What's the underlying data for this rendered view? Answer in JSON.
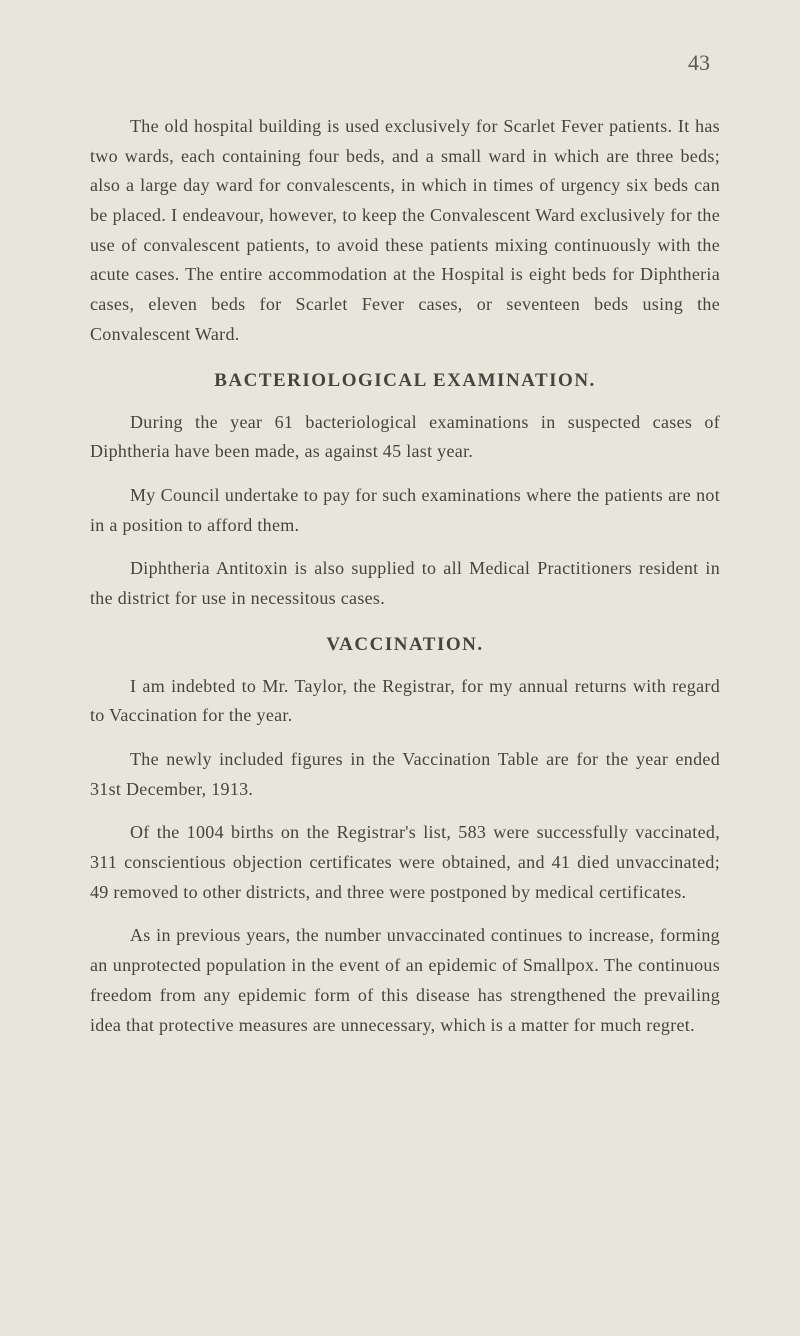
{
  "page_number": "43",
  "paragraphs": {
    "p1": "The old hospital building is used exclusively for Scarlet Fever patients. It has two wards, each containing four beds, and a small ward in which are three beds; also a large day ward for convalescents, in which in times of urgency six beds can be placed. I endeavour, however, to keep the Convalescent Ward exclusively for the use of convalescent patients, to avoid these patients mixing continuously with the acute cases. The entire accommodation at the Hospital is eight beds for Diphtheria cases, eleven beds for Scarlet Fever cases, or seventeen beds using the Convalescent Ward.",
    "heading1": "BACTERIOLOGICAL EXAMINATION.",
    "p2": "During the year 61 bacteriological examinations in suspected cases of Diphtheria have been made, as against 45 last year.",
    "p3": "My Council undertake to pay for such examinations where the patients are not in a position to afford them.",
    "p4": "Diphtheria Antitoxin is also supplied to all Medical Practitioners resident in the district for use in necessitous cases.",
    "heading2": "VACCINATION.",
    "p5": "I am indebted to Mr. Taylor, the Registrar, for my annual returns with regard to Vaccination for the year.",
    "p6": "The newly included figures in the Vaccination Table are for the year ended 31st December, 1913.",
    "p7": "Of the 1004 births on the Registrar's list, 583 were successfully vaccinated, 311 conscientious objection certificates were obtained, and 41 died unvaccinated; 49 removed to other districts, and three were postponed by medical certificates.",
    "p8": "As in previous years, the number unvaccinated continues to increase, forming an unprotected population in the event of an epidemic of Smallpox. The continuous freedom from any epidemic form of this disease has strengthened the prevailing idea that protective measures are unnecessary, which is a matter for much regret."
  },
  "colors": {
    "background": "#e8e6db",
    "text": "#444440",
    "page_number": "#5a5a52"
  },
  "typography": {
    "body_fontsize": 18,
    "heading_fontsize": 19,
    "page_number_fontsize": 22,
    "line_height": 1.65,
    "font_family": "Georgia, Times New Roman, serif"
  }
}
